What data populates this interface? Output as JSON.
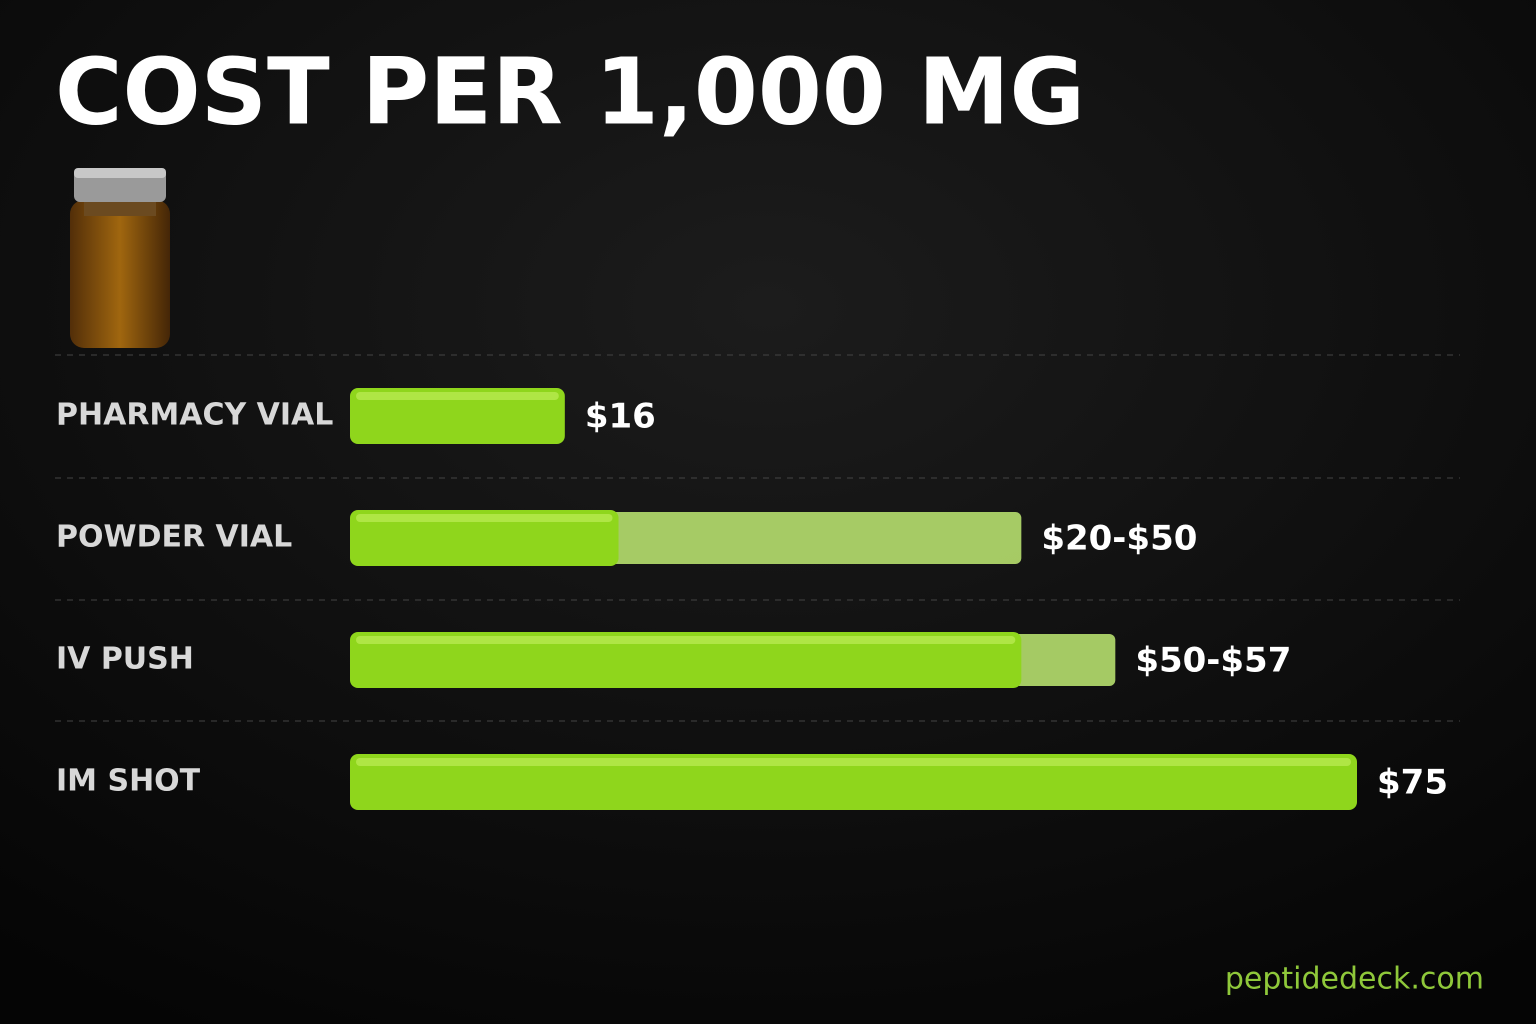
{
  "chart_data": {
    "type": "range-bar",
    "title": "COST PER 1,000 MG",
    "categories": [
      "PHARMACY VIAL",
      "POWDER VIAL",
      "IV PUSH",
      "IM SHOT"
    ],
    "values": [
      16,
      20,
      50,
      75
    ],
    "upper": [
      null,
      50,
      57,
      null
    ],
    "value_labels": [
      "$16",
      "$20-$50",
      "$50-$57",
      "$75"
    ],
    "color": "#8fd61c",
    "range_color": "#b6df6e",
    "footer": "peptidedeck.com"
  }
}
